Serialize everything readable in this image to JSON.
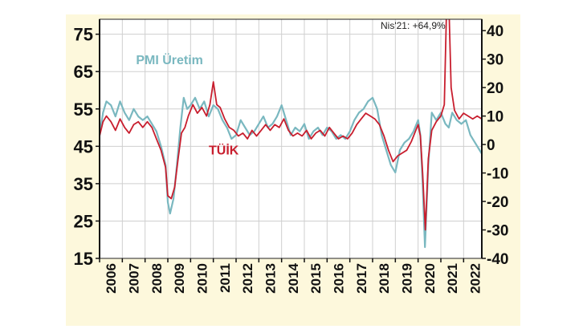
{
  "chart_data": {
    "type": "line",
    "title": "",
    "xlabel": "",
    "ylabel": "",
    "x_categories": [
      "2006",
      "2007",
      "2008",
      "2009",
      "2010",
      "2011",
      "2012",
      "2013",
      "2014",
      "2015",
      "2016",
      "2017",
      "2018",
      "2019",
      "2020",
      "2021",
      "2022"
    ],
    "xlim": [
      2006,
      2022.8
    ],
    "y_left": {
      "ticks": [
        "75",
        "65",
        "55",
        "45",
        "35",
        "25",
        "15"
      ],
      "ylim": [
        15,
        79
      ]
    },
    "y_right": {
      "ticks": [
        "40",
        "30",
        "20",
        "10",
        "0",
        "-10",
        "-20",
        "-30",
        "-40"
      ],
      "ylim": [
        -40,
        44
      ]
    },
    "grid": true,
    "annotations": [
      {
        "text": "Nis'21: +64,9%",
        "x": 2021.3,
        "y": 64.9,
        "axis": "right"
      }
    ],
    "series": [
      {
        "name": "PMI Üretim",
        "axis": "left",
        "color": "#7ab8c0",
        "points": [
          [
            2006.0,
            48
          ],
          [
            2006.15,
            54
          ],
          [
            2006.3,
            57
          ],
          [
            2006.5,
            56
          ],
          [
            2006.7,
            53
          ],
          [
            2006.9,
            57
          ],
          [
            2007.1,
            54
          ],
          [
            2007.3,
            52
          ],
          [
            2007.5,
            55
          ],
          [
            2007.7,
            53
          ],
          [
            2007.9,
            52
          ],
          [
            2008.1,
            53
          ],
          [
            2008.3,
            51
          ],
          [
            2008.5,
            49
          ],
          [
            2008.7,
            45
          ],
          [
            2008.9,
            40
          ],
          [
            2009.0,
            30
          ],
          [
            2009.1,
            27
          ],
          [
            2009.25,
            31
          ],
          [
            2009.4,
            40
          ],
          [
            2009.55,
            50
          ],
          [
            2009.7,
            58
          ],
          [
            2009.85,
            55
          ],
          [
            2010.0,
            56
          ],
          [
            2010.2,
            58
          ],
          [
            2010.4,
            55
          ],
          [
            2010.6,
            57
          ],
          [
            2010.8,
            53
          ],
          [
            2011.0,
            56
          ],
          [
            2011.2,
            55
          ],
          [
            2011.4,
            52
          ],
          [
            2011.6,
            50
          ],
          [
            2011.8,
            47
          ],
          [
            2012.0,
            48
          ],
          [
            2012.2,
            52
          ],
          [
            2012.4,
            50
          ],
          [
            2012.6,
            48
          ],
          [
            2012.8,
            49
          ],
          [
            2013.0,
            51
          ],
          [
            2013.2,
            53
          ],
          [
            2013.4,
            50
          ],
          [
            2013.6,
            51
          ],
          [
            2013.8,
            53
          ],
          [
            2014.0,
            56
          ],
          [
            2014.2,
            52
          ],
          [
            2014.4,
            48
          ],
          [
            2014.6,
            50
          ],
          [
            2014.8,
            49
          ],
          [
            2015.0,
            51
          ],
          [
            2015.2,
            47
          ],
          [
            2015.4,
            49
          ],
          [
            2015.6,
            50
          ],
          [
            2015.8,
            48
          ],
          [
            2016.0,
            50
          ],
          [
            2016.2,
            49
          ],
          [
            2016.4,
            47
          ],
          [
            2016.6,
            48
          ],
          [
            2016.8,
            47
          ],
          [
            2017.0,
            49
          ],
          [
            2017.2,
            52
          ],
          [
            2017.4,
            54
          ],
          [
            2017.6,
            55
          ],
          [
            2017.8,
            57
          ],
          [
            2018.0,
            58
          ],
          [
            2018.2,
            55
          ],
          [
            2018.4,
            48
          ],
          [
            2018.6,
            44
          ],
          [
            2018.8,
            40
          ],
          [
            2019.0,
            38
          ],
          [
            2019.2,
            44
          ],
          [
            2019.4,
            46
          ],
          [
            2019.6,
            47
          ],
          [
            2019.8,
            49
          ],
          [
            2020.0,
            52
          ],
          [
            2020.1,
            48
          ],
          [
            2020.2,
            35
          ],
          [
            2020.3,
            18
          ],
          [
            2020.45,
            40
          ],
          [
            2020.6,
            54
          ],
          [
            2020.8,
            52
          ],
          [
            2021.0,
            54
          ],
          [
            2021.2,
            51
          ],
          [
            2021.35,
            50
          ],
          [
            2021.5,
            54
          ],
          [
            2021.7,
            52
          ],
          [
            2021.9,
            51
          ],
          [
            2022.1,
            52
          ],
          [
            2022.3,
            48
          ],
          [
            2022.5,
            46
          ],
          [
            2022.7,
            44
          ],
          [
            2022.8,
            43
          ]
        ]
      },
      {
        "name": "TÜİK",
        "axis": "right",
        "color": "#c81e2e",
        "points": [
          [
            2006.0,
            3
          ],
          [
            2006.15,
            8
          ],
          [
            2006.3,
            10
          ],
          [
            2006.5,
            8
          ],
          [
            2006.7,
            5
          ],
          [
            2006.9,
            9
          ],
          [
            2007.1,
            6
          ],
          [
            2007.3,
            4
          ],
          [
            2007.5,
            7
          ],
          [
            2007.7,
            8
          ],
          [
            2007.9,
            6
          ],
          [
            2008.1,
            8
          ],
          [
            2008.3,
            6
          ],
          [
            2008.5,
            2
          ],
          [
            2008.7,
            -2
          ],
          [
            2008.9,
            -8
          ],
          [
            2009.0,
            -18
          ],
          [
            2009.15,
            -19
          ],
          [
            2009.3,
            -15
          ],
          [
            2009.45,
            -5
          ],
          [
            2009.6,
            4
          ],
          [
            2009.75,
            6
          ],
          [
            2009.9,
            10
          ],
          [
            2010.1,
            14
          ],
          [
            2010.3,
            11
          ],
          [
            2010.5,
            13
          ],
          [
            2010.7,
            10
          ],
          [
            2010.85,
            14
          ],
          [
            2011.0,
            22
          ],
          [
            2011.15,
            14
          ],
          [
            2011.3,
            13
          ],
          [
            2011.5,
            9
          ],
          [
            2011.7,
            6
          ],
          [
            2011.9,
            5
          ],
          [
            2012.1,
            3
          ],
          [
            2012.3,
            4
          ],
          [
            2012.5,
            2
          ],
          [
            2012.7,
            5
          ],
          [
            2012.9,
            3
          ],
          [
            2013.1,
            5
          ],
          [
            2013.3,
            7
          ],
          [
            2013.5,
            5
          ],
          [
            2013.7,
            7
          ],
          [
            2013.9,
            6
          ],
          [
            2014.1,
            9
          ],
          [
            2014.3,
            5
          ],
          [
            2014.5,
            3
          ],
          [
            2014.7,
            4
          ],
          [
            2014.9,
            3
          ],
          [
            2015.1,
            5
          ],
          [
            2015.3,
            2
          ],
          [
            2015.5,
            4
          ],
          [
            2015.7,
            5
          ],
          [
            2015.9,
            3
          ],
          [
            2016.1,
            6
          ],
          [
            2016.3,
            4
          ],
          [
            2016.5,
            2
          ],
          [
            2016.7,
            3
          ],
          [
            2016.9,
            2
          ],
          [
            2017.1,
            4
          ],
          [
            2017.3,
            7
          ],
          [
            2017.5,
            9
          ],
          [
            2017.7,
            11
          ],
          [
            2017.9,
            10
          ],
          [
            2018.1,
            9
          ],
          [
            2018.3,
            7
          ],
          [
            2018.5,
            3
          ],
          [
            2018.7,
            -2
          ],
          [
            2018.9,
            -6
          ],
          [
            2019.1,
            -4
          ],
          [
            2019.3,
            -3
          ],
          [
            2019.5,
            -2
          ],
          [
            2019.7,
            1
          ],
          [
            2019.9,
            5
          ],
          [
            2020.0,
            7
          ],
          [
            2020.1,
            3
          ],
          [
            2020.2,
            -10
          ],
          [
            2020.32,
            -30
          ],
          [
            2020.45,
            -5
          ],
          [
            2020.6,
            5
          ],
          [
            2020.8,
            8
          ],
          [
            2021.0,
            10
          ],
          [
            2021.15,
            14
          ],
          [
            2021.3,
            64.9
          ],
          [
            2021.45,
            20
          ],
          [
            2021.6,
            12
          ],
          [
            2021.8,
            9
          ],
          [
            2022.0,
            11
          ],
          [
            2022.2,
            10
          ],
          [
            2022.4,
            9
          ],
          [
            2022.6,
            10
          ],
          [
            2022.8,
            9
          ]
        ]
      }
    ]
  }
}
